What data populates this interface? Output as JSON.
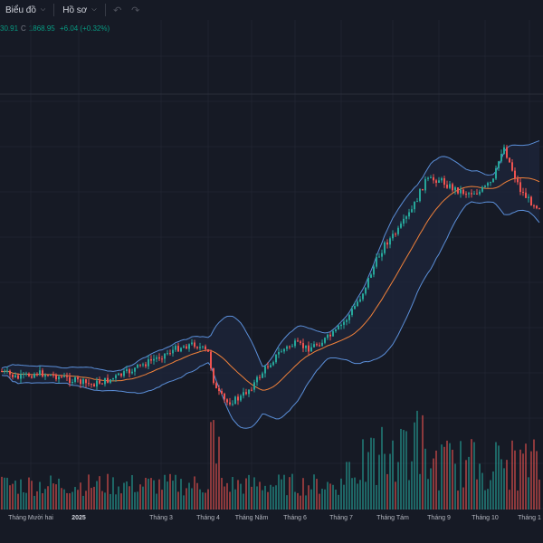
{
  "toolbar": {
    "chart_menu_label": "Biểu đồ",
    "profile_menu_label": "Hồ sơ",
    "undo_icon": "undo-icon",
    "redo_icon": "redo-icon"
  },
  "legend": {
    "open_fragment": "30.91",
    "close_label": "C",
    "close_value": "1868.95",
    "change": "+6.04 (+0.32%)"
  },
  "colors": {
    "background": "#161a25",
    "up": "#26a69a",
    "down": "#ef5350",
    "band": "#5b8fd9",
    "band_fill": "#1c2538",
    "basis": "#f0813a",
    "grid": "#1f2330"
  },
  "chart_data": {
    "type": "candlestick",
    "indicators": [
      "Bollinger Bands",
      "Volume"
    ],
    "x_ticks": [
      {
        "label": "Tháng Mười hai",
        "bold": false
      },
      {
        "label": "2025",
        "bold": true
      },
      {
        "label": "Tháng 3",
        "bold": false
      },
      {
        "label": "Tháng 4",
        "bold": false
      },
      {
        "label": "Tháng Năm",
        "bold": false
      },
      {
        "label": "Tháng 6",
        "bold": false
      },
      {
        "label": "Tháng 7",
        "bold": false
      },
      {
        "label": "Tháng Tám",
        "bold": false
      },
      {
        "label": "Tháng 9",
        "bold": false
      },
      {
        "label": "Tháng 10",
        "bold": false
      },
      {
        "label": "Tháng 1",
        "bold": false
      }
    ],
    "last_close": 1868.95,
    "change": 6.04,
    "change_pct": 0.32,
    "grid": true
  }
}
